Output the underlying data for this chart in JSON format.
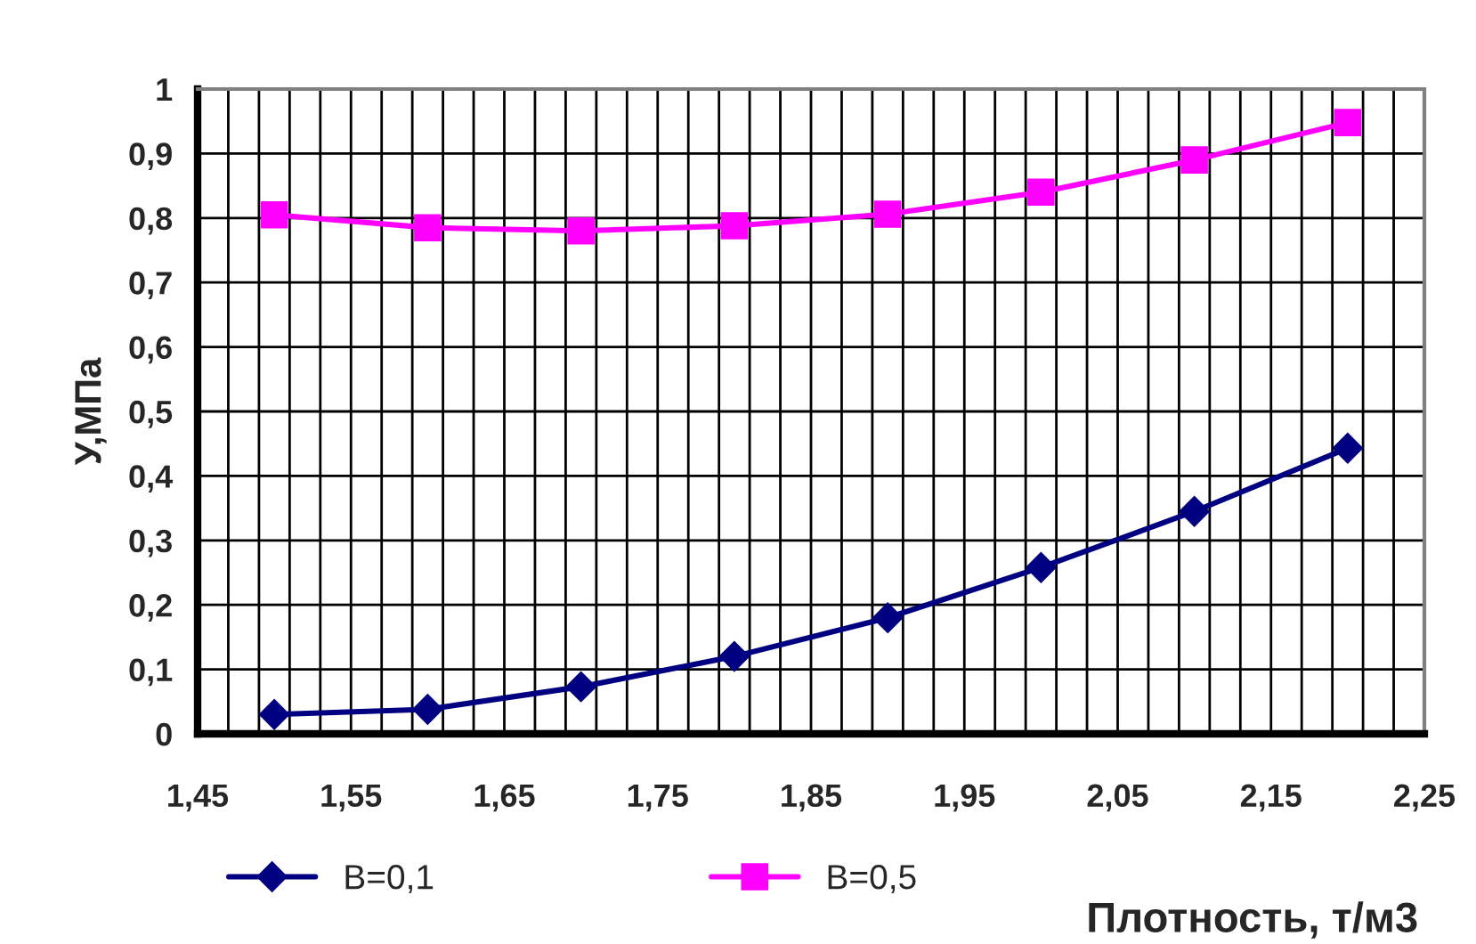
{
  "chart_data": {
    "type": "line",
    "xlabel": "Плотность, т/м3",
    "ylabel": "У,МПа",
    "x": [
      1.5,
      1.6,
      1.7,
      1.8,
      1.9,
      2.0,
      2.1,
      2.2
    ],
    "series": [
      {
        "name": "В=0,1",
        "color": "#000080",
        "marker": "diamond",
        "values": [
          0.03,
          0.038,
          0.073,
          0.12,
          0.18,
          0.258,
          0.345,
          0.443
        ]
      },
      {
        "name": "В=0,5",
        "color": "#ff00ff",
        "marker": "square",
        "values": [
          0.805,
          0.785,
          0.78,
          0.788,
          0.806,
          0.84,
          0.89,
          0.948
        ]
      }
    ],
    "xlim": [
      1.45,
      2.25
    ],
    "xticks": [
      {
        "value": 1.45,
        "label": "1,45"
      },
      {
        "value": 1.47,
        "label": null
      },
      {
        "value": 1.49,
        "label": null
      },
      {
        "value": 1.51,
        "label": null
      },
      {
        "value": 1.53,
        "label": null
      },
      {
        "value": 1.55,
        "label": "1,55"
      },
      {
        "value": 1.57,
        "label": null
      },
      {
        "value": 1.59,
        "label": null
      },
      {
        "value": 1.61,
        "label": null
      },
      {
        "value": 1.63,
        "label": null
      },
      {
        "value": 1.65,
        "label": "1,65"
      },
      {
        "value": 1.67,
        "label": null
      },
      {
        "value": 1.69,
        "label": null
      },
      {
        "value": 1.71,
        "label": null
      },
      {
        "value": 1.73,
        "label": null
      },
      {
        "value": 1.75,
        "label": "1,75"
      },
      {
        "value": 1.77,
        "label": null
      },
      {
        "value": 1.79,
        "label": null
      },
      {
        "value": 1.81,
        "label": null
      },
      {
        "value": 1.83,
        "label": null
      },
      {
        "value": 1.85,
        "label": "1,85"
      },
      {
        "value": 1.87,
        "label": null
      },
      {
        "value": 1.89,
        "label": null
      },
      {
        "value": 1.91,
        "label": null
      },
      {
        "value": 1.93,
        "label": null
      },
      {
        "value": 1.95,
        "label": "1,95"
      },
      {
        "value": 1.97,
        "label": null
      },
      {
        "value": 1.99,
        "label": null
      },
      {
        "value": 2.01,
        "label": null
      },
      {
        "value": 2.03,
        "label": null
      },
      {
        "value": 2.05,
        "label": "2,05"
      },
      {
        "value": 2.07,
        "label": null
      },
      {
        "value": 2.09,
        "label": null
      },
      {
        "value": 2.11,
        "label": null
      },
      {
        "value": 2.13,
        "label": null
      },
      {
        "value": 2.15,
        "label": "2,15"
      },
      {
        "value": 2.17,
        "label": null
      },
      {
        "value": 2.19,
        "label": null
      },
      {
        "value": 2.21,
        "label": null
      },
      {
        "value": 2.23,
        "label": null
      },
      {
        "value": 2.25,
        "label": "2,25"
      }
    ],
    "ylim": [
      0,
      1
    ],
    "yticks": [
      0,
      {
        "value": 0.1,
        "label": "0,1"
      },
      {
        "value": 0.2,
        "label": "0,2"
      },
      {
        "value": 0.3,
        "label": "0,3"
      },
      {
        "value": 0.4,
        "label": "0,4"
      },
      {
        "value": 0.5,
        "label": "0,5"
      },
      {
        "value": 0.6,
        "label": "0,6"
      },
      {
        "value": 0.7,
        "label": "0,7"
      },
      {
        "value": 0.8,
        "label": "0,8"
      },
      {
        "value": 0.9,
        "label": "0,9"
      },
      1
    ],
    "grid": true,
    "legend": "bottom left",
    "line_style": "solid"
  }
}
